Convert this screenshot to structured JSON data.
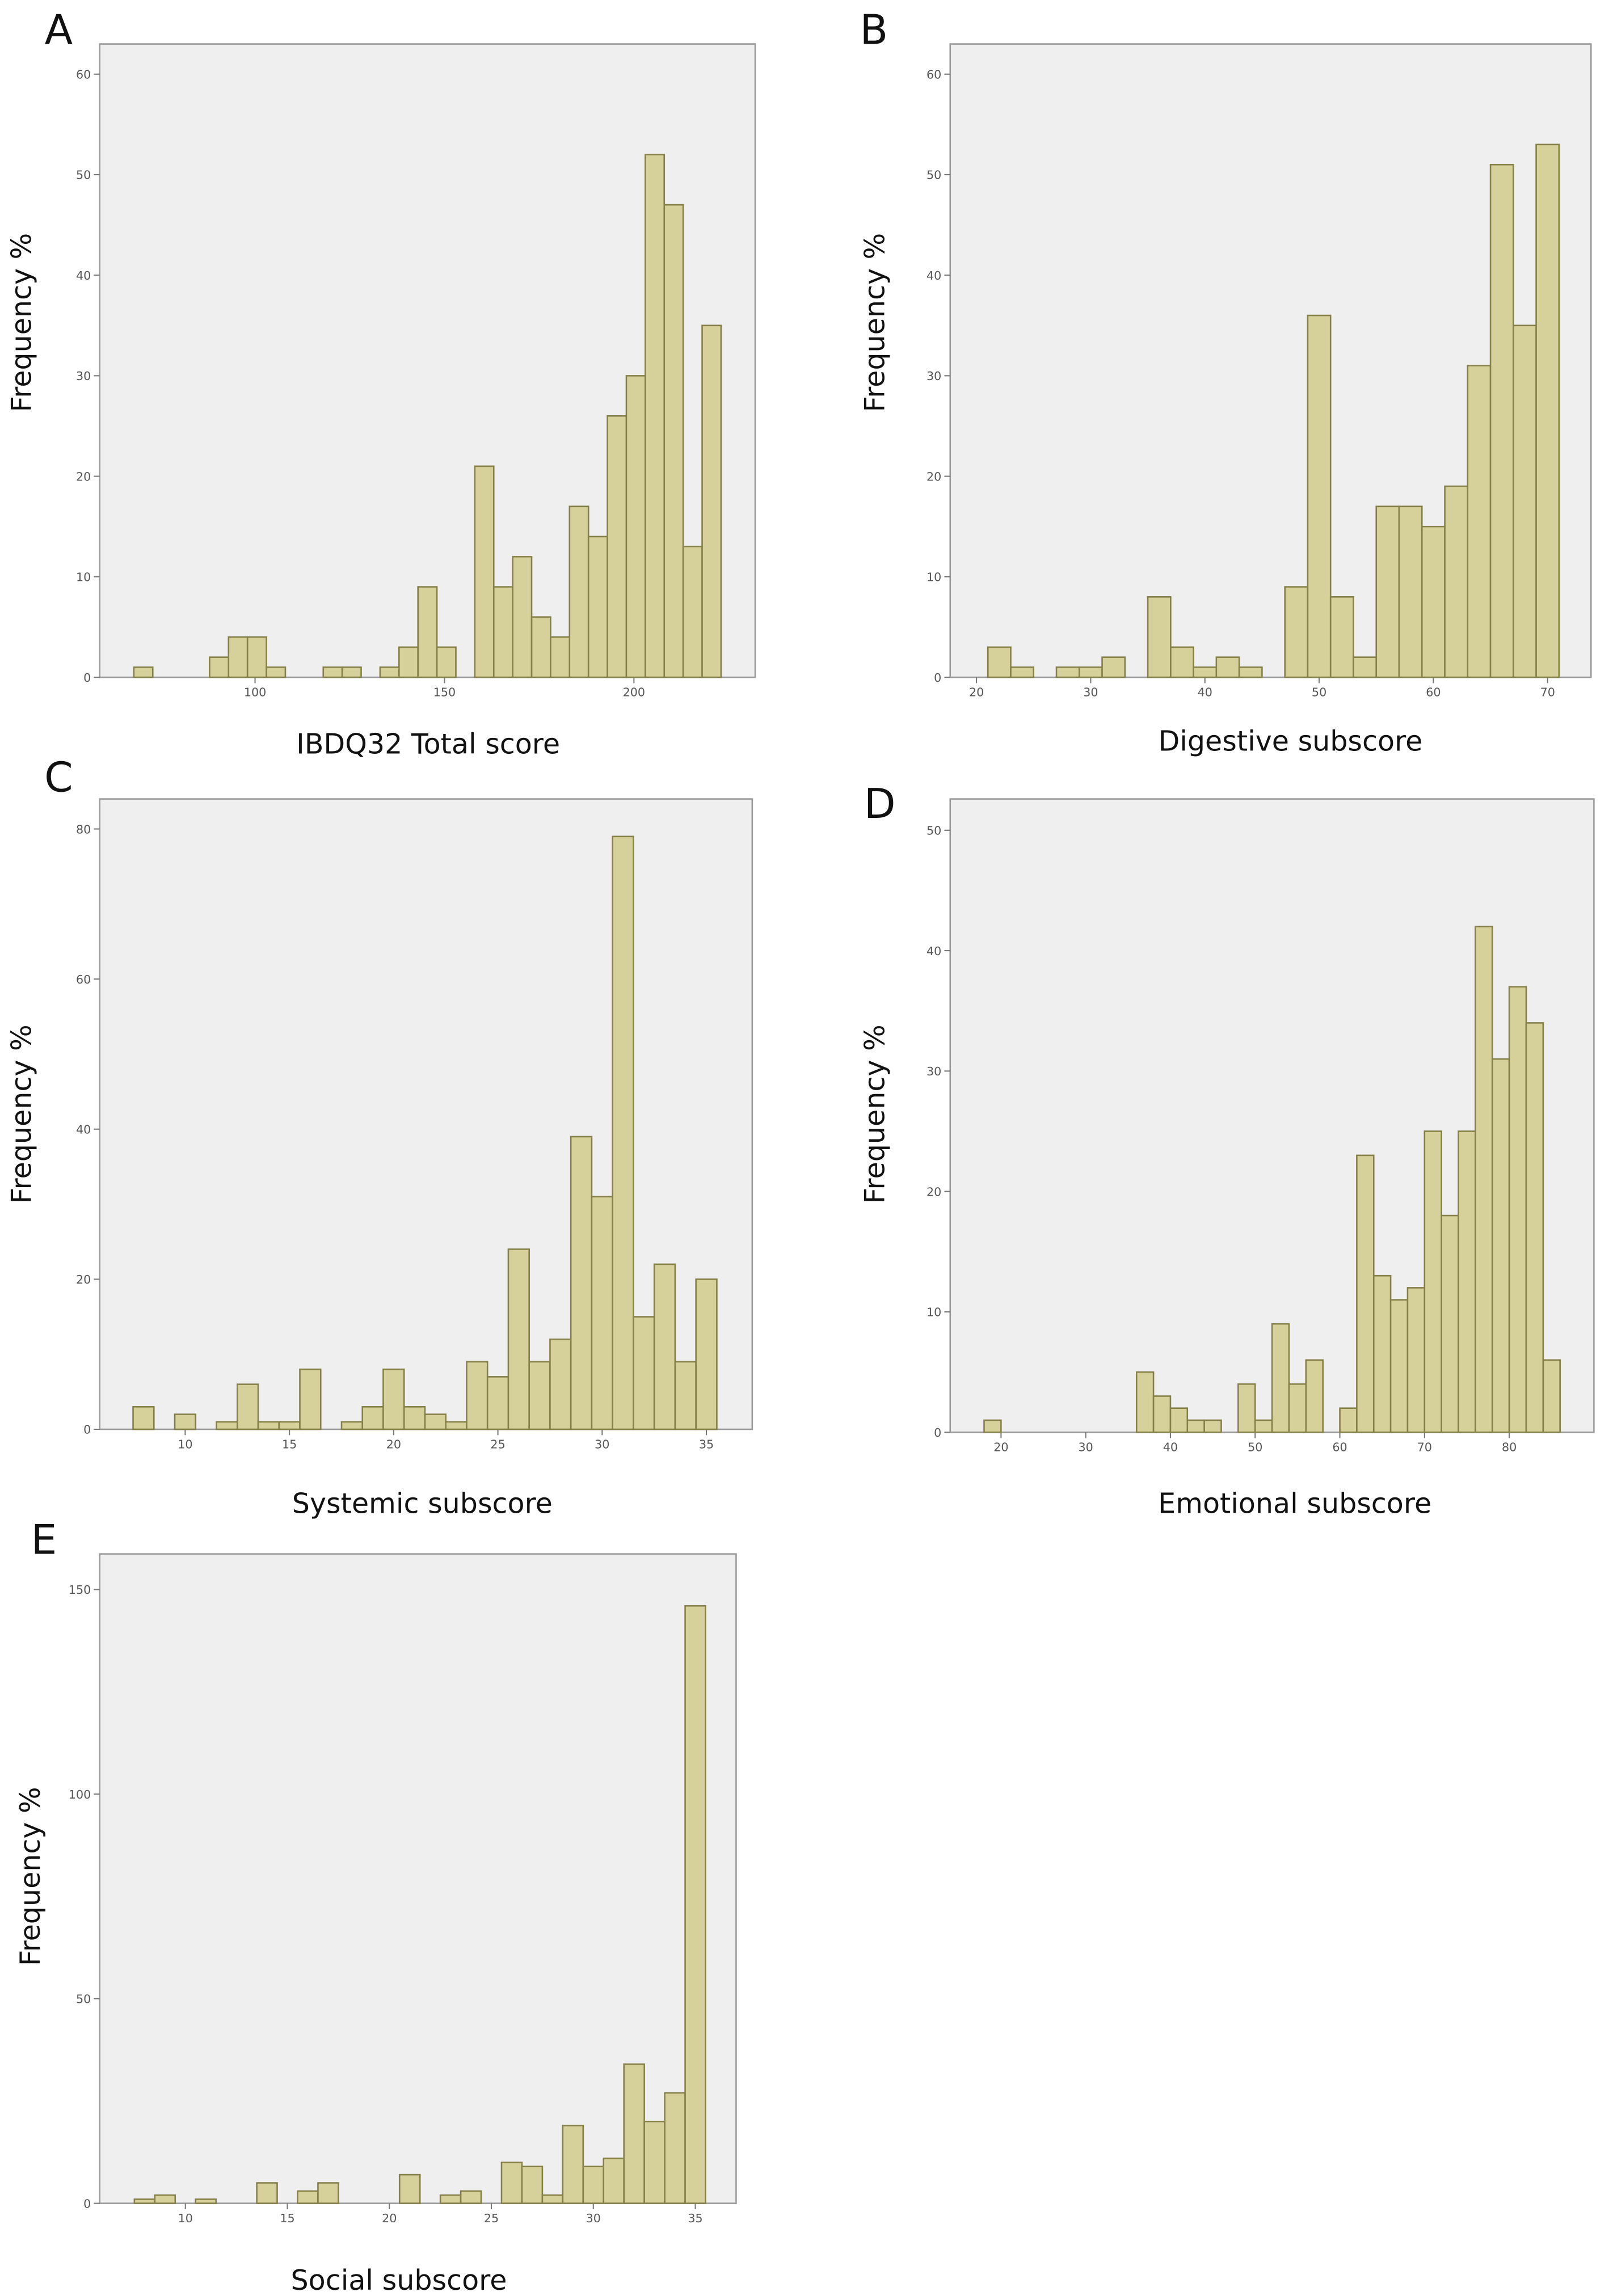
{
  "chart_data": [
    {
      "type": "histogram",
      "panel_label": "A",
      "x_label": "IBDQ32 Total score",
      "y_label": "Frequency %",
      "bins": [
        68,
        73,
        78,
        83,
        88,
        93,
        98,
        103,
        108,
        113,
        118,
        123,
        128,
        133,
        138,
        143,
        148,
        153,
        158,
        163,
        168,
        173,
        178,
        183,
        188,
        193,
        198,
        203,
        208,
        213,
        218,
        223
      ],
      "values": [
        1,
        0,
        0,
        0,
        2,
        4,
        4,
        1,
        0,
        0,
        1,
        1,
        0,
        1,
        3,
        9,
        3,
        0,
        21,
        9,
        12,
        6,
        4,
        17,
        14,
        26,
        30,
        52,
        47,
        13,
        35
      ],
      "color": "#d6d09a",
      "edge_color": "#857f48",
      "xlim": [
        59,
        232
      ],
      "ylim": [
        0,
        63
      ],
      "xticks": [
        100,
        150,
        200
      ],
      "yticks": [
        0,
        10,
        20,
        30,
        40,
        50,
        60
      ]
    },
    {
      "type": "histogram",
      "panel_label": "B",
      "x_label": "Digestive subscore",
      "y_label": "Frequency %",
      "bins": [
        21,
        23,
        25,
        27,
        29,
        31,
        33,
        35,
        37,
        39,
        41,
        43,
        45,
        47,
        49,
        51,
        53,
        55,
        57,
        59,
        61,
        63,
        65,
        67,
        69,
        71
      ],
      "values": [
        3,
        1,
        0,
        1,
        1,
        2,
        0,
        8,
        3,
        1,
        2,
        1,
        0,
        9,
        36,
        8,
        2,
        17,
        17,
        15,
        19,
        31,
        51,
        35,
        53
      ],
      "color": "#d6d09a",
      "edge_color": "#857f48",
      "xlim": [
        17.7,
        73.8
      ],
      "ylim": [
        0,
        63
      ],
      "xticks": [
        20,
        30,
        40,
        50,
        60,
        70
      ],
      "yticks": [
        0,
        10,
        20,
        30,
        40,
        50,
        60
      ]
    },
    {
      "type": "histogram",
      "panel_label": "C",
      "x_label": "Systemic subscore",
      "y_label": "Frequency %",
      "bins": [
        7.5,
        8.5,
        9.5,
        10.5,
        11.5,
        12.5,
        13.5,
        14.5,
        15.5,
        16.5,
        17.5,
        18.5,
        19.5,
        20.5,
        21.5,
        22.5,
        23.5,
        24.5,
        25.5,
        26.5,
        27.5,
        28.5,
        29.5,
        30.5,
        31.5,
        32.5,
        33.5,
        34.5,
        35.5
      ],
      "values": [
        3,
        0,
        2,
        0,
        1,
        6,
        1,
        1,
        8,
        0,
        1,
        3,
        8,
        3,
        2,
        1,
        9,
        7,
        24,
        9,
        12,
        39,
        31,
        79,
        15,
        22,
        9,
        20
      ],
      "color": "#d6d09a",
      "edge_color": "#857f48",
      "xlim": [
        5.9,
        37.2
      ],
      "ylim": [
        0,
        84
      ],
      "xticks": [
        10,
        15,
        20,
        25,
        30,
        35
      ],
      "yticks": [
        0,
        20,
        40,
        60,
        80
      ]
    },
    {
      "type": "histogram",
      "panel_label": "D",
      "x_label": "Emotional subscore",
      "y_label": "Frequency %",
      "bins": [
        18,
        20,
        22,
        24,
        26,
        28,
        30,
        32,
        34,
        36,
        38,
        40,
        42,
        44,
        46,
        48,
        50,
        52,
        54,
        56,
        58,
        60,
        62,
        64,
        66,
        68,
        70,
        72,
        74,
        76,
        78,
        80,
        82,
        84,
        86
      ],
      "values": [
        1,
        0,
        0,
        0,
        0,
        0,
        0,
        0,
        0,
        5,
        3,
        2,
        1,
        1,
        0,
        4,
        1,
        9,
        4,
        6,
        0,
        2,
        23,
        13,
        11,
        12,
        25,
        18,
        25,
        42,
        31,
        37,
        34,
        6
      ],
      "color": "#d6d09a",
      "edge_color": "#857f48",
      "xlim": [
        14,
        90
      ],
      "ylim": [
        0,
        52.6
      ],
      "xticks": [
        20,
        30,
        40,
        50,
        60,
        70,
        80
      ],
      "yticks": [
        0,
        10,
        20,
        30,
        40,
        50
      ]
    },
    {
      "type": "histogram",
      "panel_label": "E",
      "x_label": "Social subscore",
      "y_label": "Frequency %",
      "bins": [
        7.5,
        8.5,
        9.5,
        10.5,
        11.5,
        12.5,
        13.5,
        14.5,
        15.5,
        16.5,
        17.5,
        18.5,
        19.5,
        20.5,
        21.5,
        22.5,
        23.5,
        24.5,
        25.5,
        26.5,
        27.5,
        28.5,
        29.5,
        30.5,
        31.5,
        32.5,
        33.5,
        34.5,
        35.5
      ],
      "values": [
        1,
        2,
        0,
        1,
        0,
        0,
        5,
        0,
        3,
        5,
        0,
        0,
        0,
        7,
        0,
        2,
        3,
        0,
        10,
        9,
        2,
        19,
        9,
        11,
        34,
        20,
        27,
        146
      ],
      "color": "#d6d09a",
      "edge_color": "#857f48",
      "xlim": [
        5.8,
        37
      ],
      "ylim": [
        0,
        158.7
      ],
      "xticks": [
        10,
        15,
        20,
        25,
        30,
        35
      ],
      "yticks": [
        0,
        50,
        100,
        150
      ]
    }
  ]
}
